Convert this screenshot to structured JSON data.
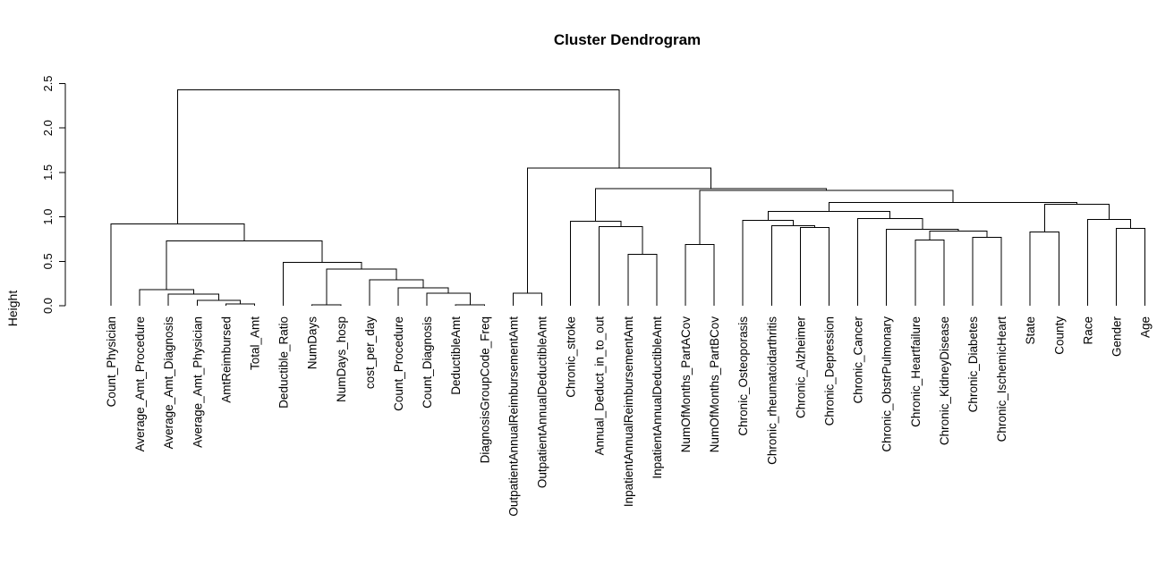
{
  "chart_data": {
    "type": "dendrogram",
    "title": "Cluster Dendrogram",
    "ylabel": "Height",
    "ylim": [
      0,
      2.5
    ],
    "yticks": [
      0.0,
      0.5,
      1.0,
      1.5,
      2.0,
      2.5
    ],
    "ytick_labels": [
      "0.0",
      "0.5",
      "1.0",
      "1.5",
      "2.0",
      "2.5"
    ],
    "leaves": [
      "Count_Physician",
      "Average_Amt_Procedure",
      "Average_Amt_Diagnosis",
      "Average_Amt_Physician",
      "AmtReimbursed",
      "Total_Amt",
      "Deductible_Ratio",
      "NumDays",
      "NumDays_hosp",
      "cost_per_day",
      "Count_Procedure",
      "Count_Diagnosis",
      "DeductibleAmt",
      "DiagnosisGroupCode_Freq",
      "OutpatientAnnualReimbursementAmt",
      "OutpatientAnnualDeductibleAmt",
      "Chronic_stroke",
      "Annual_Deduct_in_to_out",
      "InpatientAnnualReimbursementAmt",
      "InpatientAnnualDeductibleAmt",
      "NumOfMonths_PartACov",
      "NumOfMonths_PartBCov",
      "Chronic_Osteoporasis",
      "Chronic_rheumatoidarthritis",
      "Chronic_Alzheimer",
      "Chronic_Depression",
      "Chronic_Cancer",
      "Chronic_ObstrPulmonary",
      "Chronic_Heartfailure",
      "Chronic_KidneyDisease",
      "Chronic_Diabetes",
      "Chronic_IschemicHeart",
      "State",
      "County",
      "Race",
      "Gender",
      "Age"
    ],
    "merges": [
      {
        "id": "m1",
        "left": "L4",
        "right": "L5",
        "height": 0.02
      },
      {
        "id": "m2",
        "left": "L3",
        "right": "m1",
        "height": 0.06
      },
      {
        "id": "m3",
        "left": "L2",
        "right": "m2",
        "height": 0.13
      },
      {
        "id": "m4",
        "left": "L1",
        "right": "m3",
        "height": 0.18
      },
      {
        "id": "m5",
        "left": "L7",
        "right": "L8",
        "height": 0.01
      },
      {
        "id": "m6",
        "left": "L12",
        "right": "L13",
        "height": 0.01
      },
      {
        "id": "m7",
        "left": "L11",
        "right": "m6",
        "height": 0.14
      },
      {
        "id": "m8",
        "left": "L10",
        "right": "m7",
        "height": 0.2
      },
      {
        "id": "m9",
        "left": "L9",
        "right": "m8",
        "height": 0.29
      },
      {
        "id": "m10",
        "left": "m5",
        "right": "m9",
        "height": 0.41
      },
      {
        "id": "m11",
        "left": "L6",
        "right": "m10",
        "height": 0.49
      },
      {
        "id": "m12",
        "left": "m4",
        "right": "m11",
        "height": 0.73
      },
      {
        "id": "m13",
        "left": "L0",
        "right": "m12",
        "height": 0.92
      },
      {
        "id": "m14",
        "left": "L14",
        "right": "L15",
        "height": 0.14
      },
      {
        "id": "m15",
        "left": "L18",
        "right": "L19",
        "height": 0.58
      },
      {
        "id": "m16",
        "left": "L17",
        "right": "m15",
        "height": 0.89
      },
      {
        "id": "m17",
        "left": "L16",
        "right": "m16",
        "height": 0.95
      },
      {
        "id": "m18",
        "left": "L20",
        "right": "L21",
        "height": 0.69
      },
      {
        "id": "m19",
        "left": "L24",
        "right": "L25",
        "height": 0.88
      },
      {
        "id": "m20",
        "left": "L23",
        "right": "m19",
        "height": 0.9
      },
      {
        "id": "m21",
        "left": "L22",
        "right": "m20",
        "height": 0.96
      },
      {
        "id": "m22",
        "left": "L28",
        "right": "L29",
        "height": 0.74
      },
      {
        "id": "m23",
        "left": "L30",
        "right": "L31",
        "height": 0.77
      },
      {
        "id": "m24",
        "left": "m22",
        "right": "m23",
        "height": 0.84
      },
      {
        "id": "m25",
        "left": "L27",
        "right": "m24",
        "height": 0.86
      },
      {
        "id": "m26",
        "left": "L26",
        "right": "m25",
        "height": 0.98
      },
      {
        "id": "m27",
        "left": "m21",
        "right": "m26",
        "height": 1.06
      },
      {
        "id": "m28",
        "left": "L32",
        "right": "L33",
        "height": 0.83
      },
      {
        "id": "m29",
        "left": "L35",
        "right": "L36",
        "height": 0.87
      },
      {
        "id": "m30",
        "left": "L34",
        "right": "m29",
        "height": 0.97
      },
      {
        "id": "m31",
        "left": "m28",
        "right": "m30",
        "height": 1.14
      },
      {
        "id": "m32",
        "left": "m27",
        "right": "m31",
        "height": 1.16
      },
      {
        "id": "m33",
        "left": "m18",
        "right": "m32",
        "height": 1.3
      },
      {
        "id": "m34",
        "left": "m17",
        "right": "m33",
        "height": 1.32
      },
      {
        "id": "m35",
        "left": "m14",
        "right": "m34",
        "height": 1.55
      },
      {
        "id": "m36",
        "left": "m13",
        "right": "m35",
        "height": 2.43
      }
    ]
  }
}
